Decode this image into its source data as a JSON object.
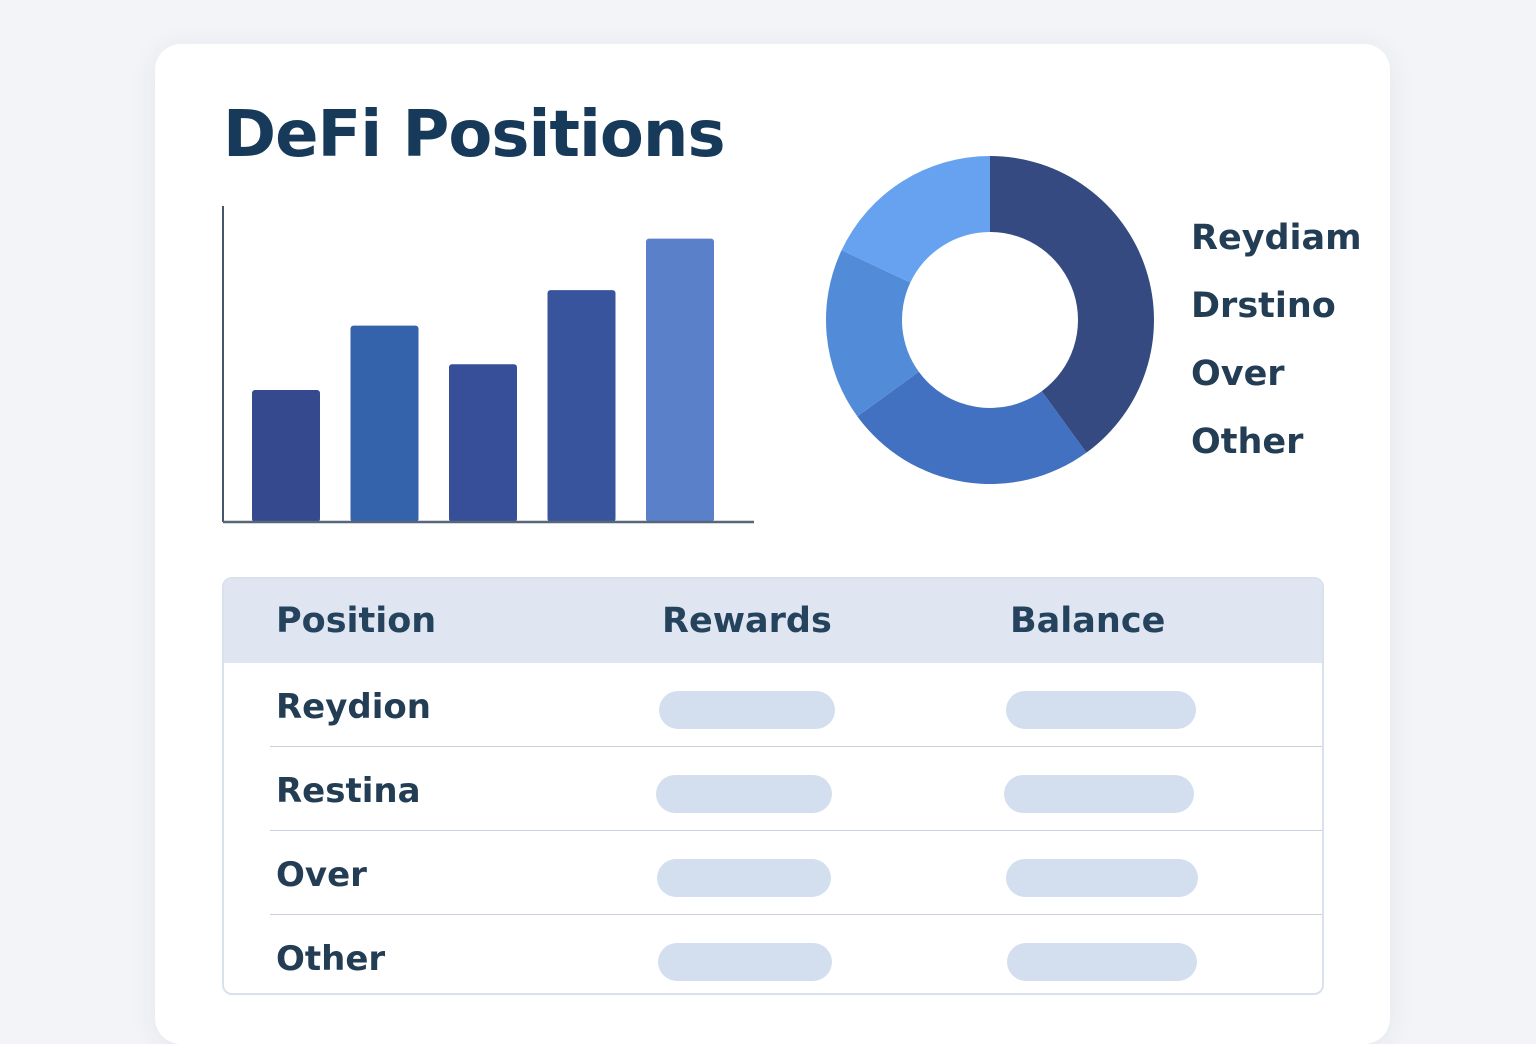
{
  "page": {
    "title": "DeFi Positions"
  },
  "colors": {
    "background": "#f2f4f7",
    "card": "#ffffff",
    "title": "#173a5a",
    "table_header": "#dfe6f1",
    "placeholder_pill": "#d3dfee"
  },
  "chart_data": [
    {
      "type": "bar",
      "title": "",
      "xlabel": "",
      "ylabel": "",
      "categories": [
        "",
        "",
        "",
        "",
        ""
      ],
      "values": [
        41,
        61,
        49,
        72,
        88
      ],
      "ylim": [
        0,
        100
      ],
      "colors": [
        "#34498e",
        "#3462ab",
        "#364f98",
        "#38549c",
        "#5a80c9"
      ],
      "grid": false
    },
    {
      "type": "pie",
      "style": "donut",
      "title": "",
      "labels": [
        "Reydiam",
        "Drstino",
        "Over",
        "Other"
      ],
      "values": [
        40,
        25,
        17,
        18
      ],
      "colors": [
        "#354a80",
        "#4171c0",
        "#528cd8",
        "#66a2f0"
      ],
      "legend_position": "right"
    }
  ],
  "legend": {
    "items": [
      "Reydiam",
      "Drstino",
      "Over",
      "Other"
    ]
  },
  "table": {
    "headers": [
      "Position",
      "Rewards",
      "Balance"
    ],
    "rows": [
      {
        "position": "Reydion"
      },
      {
        "position": "Restina"
      },
      {
        "position": "Over"
      },
      {
        "position": "Other"
      }
    ]
  }
}
